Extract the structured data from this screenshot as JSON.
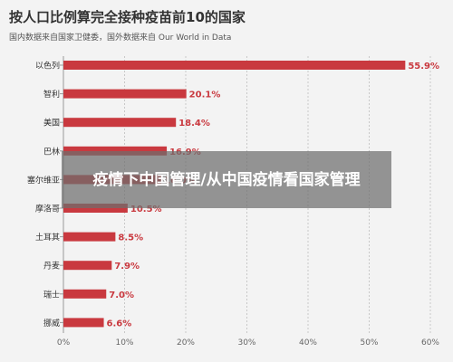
{
  "chart_data": {
    "type": "bar",
    "orientation": "horizontal",
    "title": "按人口比例算完全接种疫苗前10的国家",
    "subtitle": "国内数据来自国家卫健委，国外数据来自 Our World in Data",
    "categories": [
      "以色列",
      "智利",
      "美国",
      "巴林",
      "塞尔维亚",
      "摩洛哥",
      "土耳其",
      "丹麦",
      "瑞士",
      "挪威"
    ],
    "values": [
      55.9,
      20.1,
      18.4,
      16.9,
      16.0,
      10.5,
      8.5,
      7.9,
      7.0,
      6.6
    ],
    "value_labels": [
      "55.9%",
      "20.1%",
      "18.4%",
      "16.9%",
      "16.0%",
      "10.5%",
      "8.5%",
      "7.9%",
      "7.0%",
      "6.6%"
    ],
    "xlim": [
      0,
      60
    ],
    "xticks": [
      0,
      10,
      20,
      30,
      40,
      50,
      60
    ],
    "xtick_labels": [
      "0%",
      "10%",
      "20%",
      "30%",
      "40%",
      "50%",
      "60%"
    ],
    "grid": true,
    "bar_color": "#c9393f",
    "label_color": "#c9393f"
  },
  "overlay": {
    "text": "疫情下中国管理/从中国疫情看国家管理"
  }
}
